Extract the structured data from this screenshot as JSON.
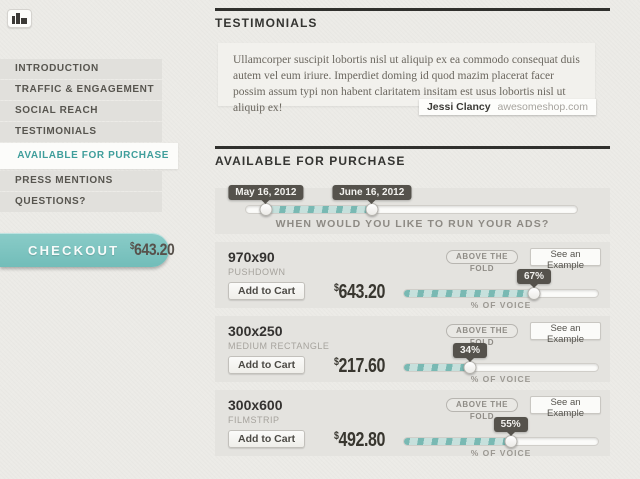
{
  "accent": "#72bdb9",
  "toolbar": {
    "chart_button": "bar-chart"
  },
  "sidebar": {
    "items": [
      {
        "label": "INTRODUCTION"
      },
      {
        "label": "TRAFFIC & ENGAGEMENT"
      },
      {
        "label": "SOCIAL REACH"
      },
      {
        "label": "TESTIMONIALS"
      },
      {
        "label": "AVAILABLE FOR PURCHASE",
        "active": true
      },
      {
        "label": "PRESS MENTIONS"
      },
      {
        "label": "QUESTIONS?"
      }
    ],
    "checkout": {
      "label": "CHECKOUT",
      "currency": "$",
      "total": "643.20"
    }
  },
  "testimonials": {
    "heading": "TESTIMONIALS",
    "quote": "Ullamcorper suscipit lobortis nisl ut aliquip ex ea commodo consequat duis autem vel eum iriure. Imperdiet doming id quod mazim placerat facer possim assum typi non habent claritatem insitam est usus lobortis nisl ut aliquip ex!",
    "author": "Jessi Clancy",
    "site": "awesomeshop.com"
  },
  "purchase": {
    "heading": "AVAILABLE FOR PURCHASE",
    "date_range": {
      "start_label": "May 16, 2012",
      "end_label": "June 16, 2012",
      "start_pct": 6,
      "end_pct": 38,
      "span_pct": 32,
      "question": "WHEN WOULD YOU LIKE TO RUN YOUR ADS?"
    },
    "add_label": "Add to Cart",
    "badge_label": "ABOVE THE FOLD",
    "example_label": "See an Example",
    "voice_label": "% OF VOICE",
    "products": [
      {
        "size": "970x90",
        "name": "PUSHDOWN",
        "currency": "$",
        "price": "643.20",
        "voice_pct": 67,
        "voice_display": "67%"
      },
      {
        "size": "300x250",
        "name": "MEDIUM RECTANGLE",
        "currency": "$",
        "price": "217.60",
        "voice_pct": 34,
        "voice_display": "34%"
      },
      {
        "size": "300x600",
        "name": "FILMSTRIP",
        "currency": "$",
        "price": "492.80",
        "voice_pct": 55,
        "voice_display": "55%"
      }
    ]
  }
}
